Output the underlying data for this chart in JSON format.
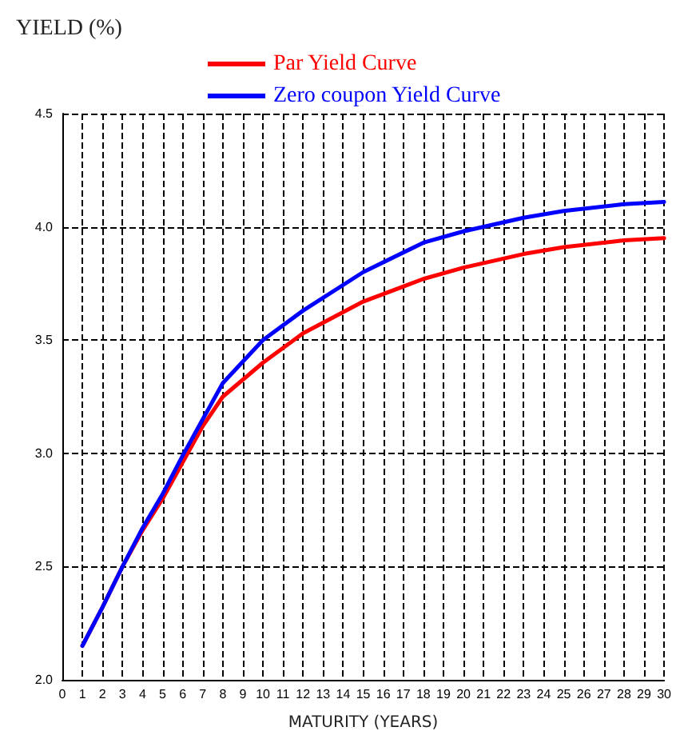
{
  "chart_data": {
    "type": "line",
    "xlabel": "MATURITY (YEARS)",
    "ylabel": "YIELD (%)",
    "x": [
      1,
      2,
      3,
      4,
      5,
      6,
      7,
      8,
      10,
      12,
      15,
      18,
      20,
      23,
      25,
      28,
      30
    ],
    "series": [
      {
        "name": "Par Yield Curve",
        "color": "#ff0000",
        "values": [
          2.15,
          2.32,
          2.5,
          2.66,
          2.8,
          2.96,
          3.12,
          3.25,
          3.4,
          3.53,
          3.67,
          3.77,
          3.82,
          3.88,
          3.91,
          3.94,
          3.95
        ]
      },
      {
        "name": "Zero coupon Yield Curve",
        "color": "#0000ff",
        "values": [
          2.15,
          2.32,
          2.5,
          2.67,
          2.82,
          2.99,
          3.15,
          3.31,
          3.5,
          3.63,
          3.8,
          3.93,
          3.98,
          4.04,
          4.07,
          4.1,
          4.11
        ]
      }
    ],
    "xlim": [
      0,
      30
    ],
    "xticks": [
      0,
      1,
      2,
      3,
      4,
      5,
      6,
      7,
      8,
      9,
      10,
      11,
      12,
      13,
      14,
      15,
      16,
      17,
      18,
      19,
      20,
      21,
      22,
      23,
      24,
      25,
      26,
      27,
      28,
      29,
      30
    ],
    "ylim": [
      2.0,
      4.5
    ],
    "yticks": [
      {
        "value": 2.0,
        "label": "2.0"
      },
      2.5,
      {
        "value": 3.0,
        "label": "3.0"
      },
      3.5,
      {
        "value": 4.0,
        "label": "4.0"
      },
      4.5
    ],
    "grid": true,
    "legend": "top",
    "marker": "none",
    "line_style": "solid"
  }
}
